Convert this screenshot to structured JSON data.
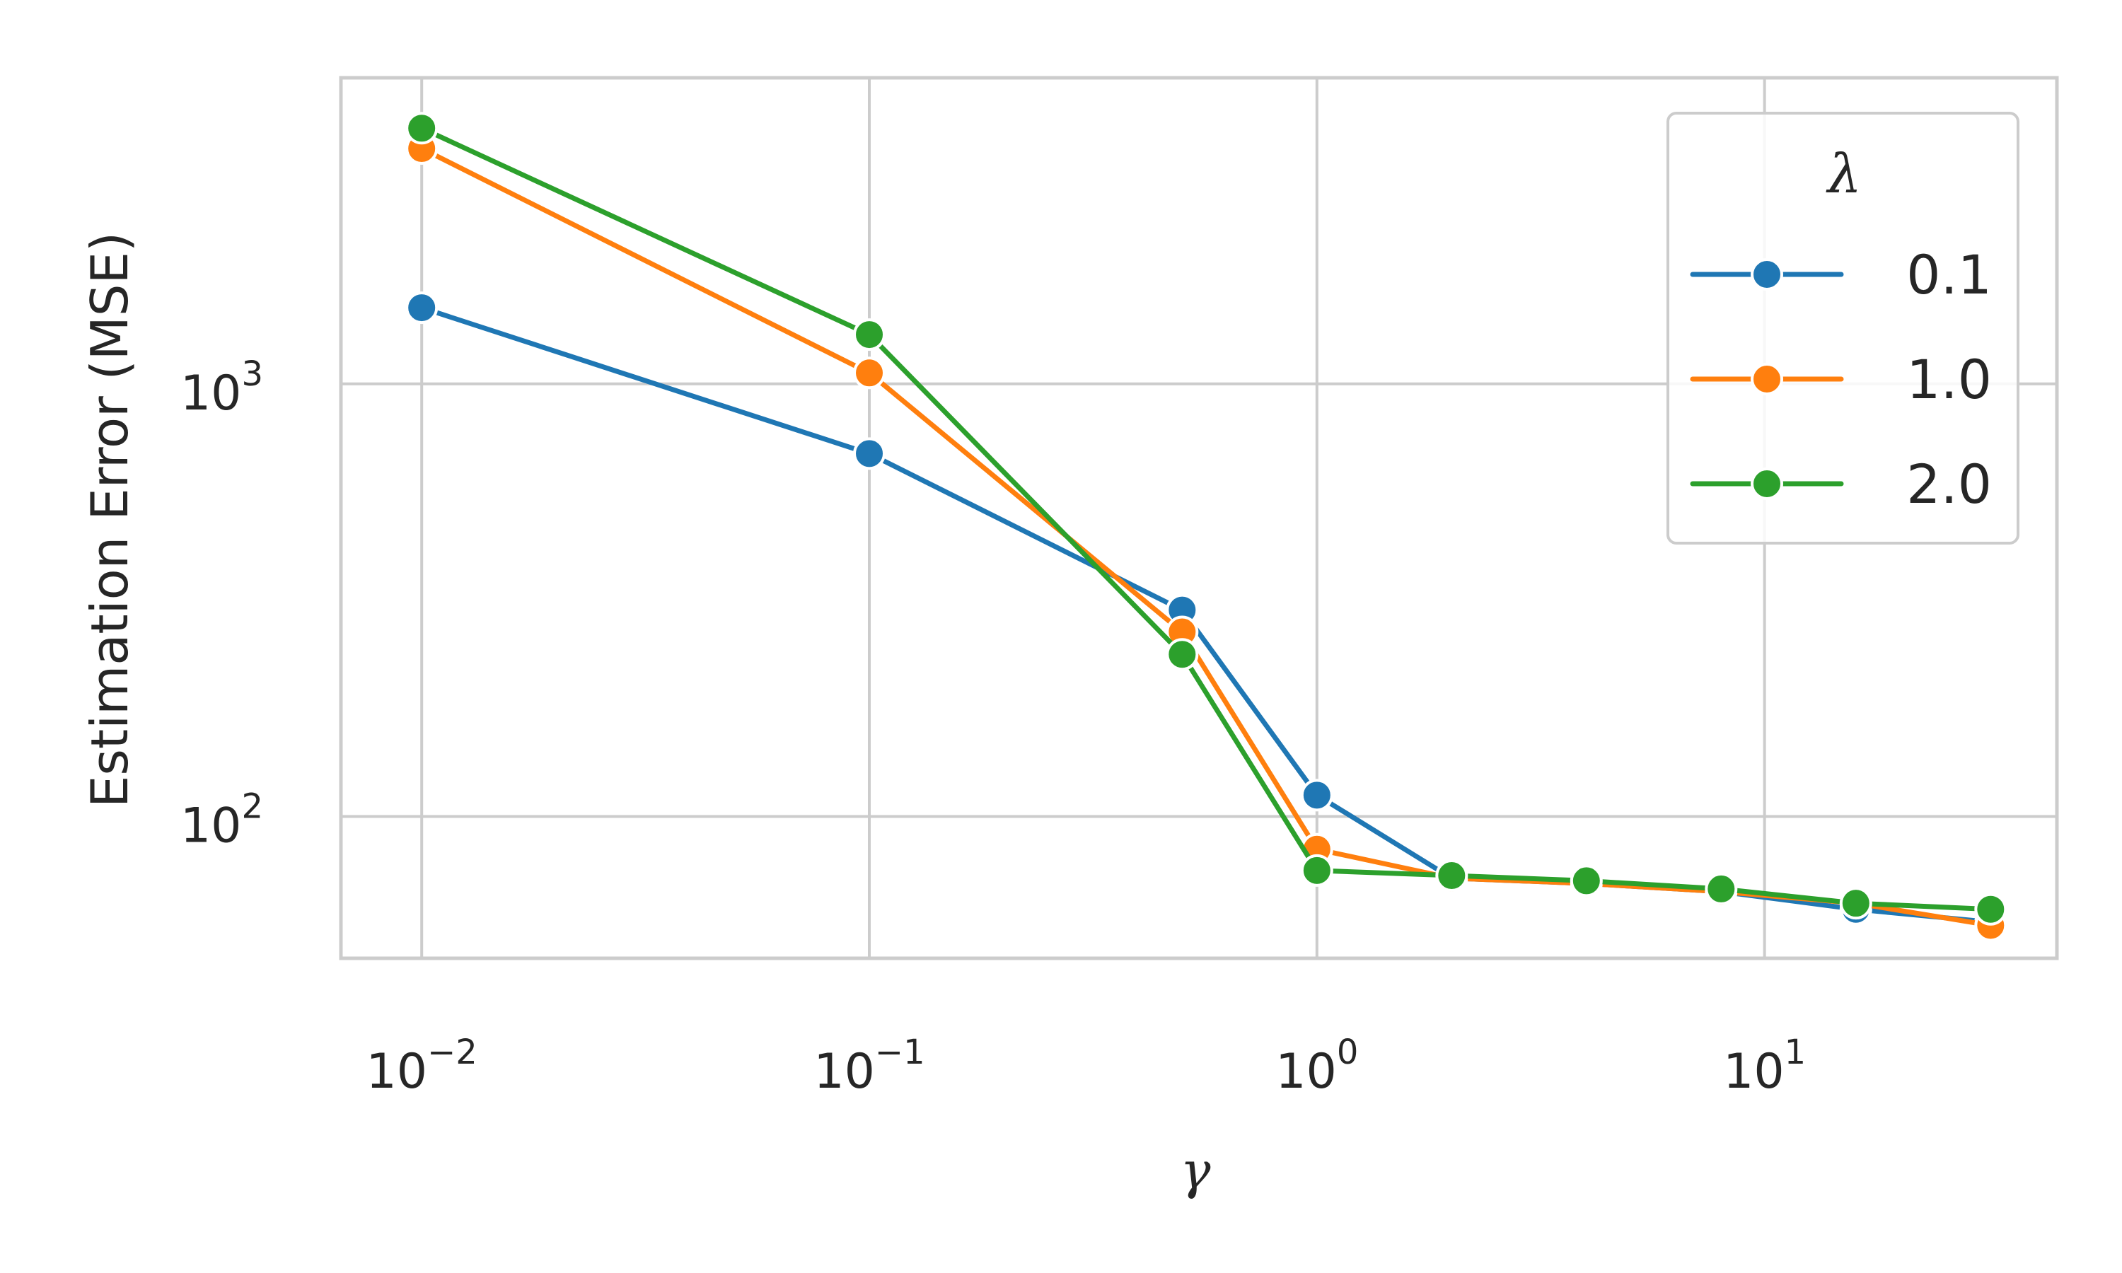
{
  "chart_data": {
    "type": "line",
    "xscale": "log",
    "yscale": "log",
    "xlabel": "γ",
    "ylabel": "Estimation Error (MSE)",
    "xlim": [
      0.0066,
      45
    ],
    "ylim": [
      47,
      5100
    ],
    "grid": true,
    "legend": {
      "title": "λ",
      "placement": "top-right"
    },
    "x_ticks": [
      {
        "value": 0.01,
        "base": "10",
        "exp": "−2"
      },
      {
        "value": 0.1,
        "base": "10",
        "exp": "−1"
      },
      {
        "value": 1,
        "base": "10",
        "exp": "0"
      },
      {
        "value": 10,
        "base": "10",
        "exp": "1"
      }
    ],
    "y_ticks": [
      {
        "value": 100,
        "base": "10",
        "exp": "2"
      },
      {
        "value": 1000,
        "base": "10",
        "exp": "3"
      }
    ],
    "x": [
      0.01,
      0.1,
      0.5,
      1,
      2,
      4,
      8,
      16,
      32
    ],
    "series": [
      {
        "name": "0.1",
        "color": "#1f77b4",
        "values": [
          1500,
          690,
          300,
          112,
          72,
          70,
          67,
          61,
          57
        ]
      },
      {
        "name": "1.0",
        "color": "#ff7f0e",
        "values": [
          3500,
          1060,
          267,
          84,
          72,
          70,
          67,
          63,
          56
        ]
      },
      {
        "name": "2.0",
        "color": "#2ca02c",
        "values": [
          3900,
          1300,
          237,
          75,
          73,
          71,
          68,
          63,
          61
        ]
      }
    ]
  }
}
